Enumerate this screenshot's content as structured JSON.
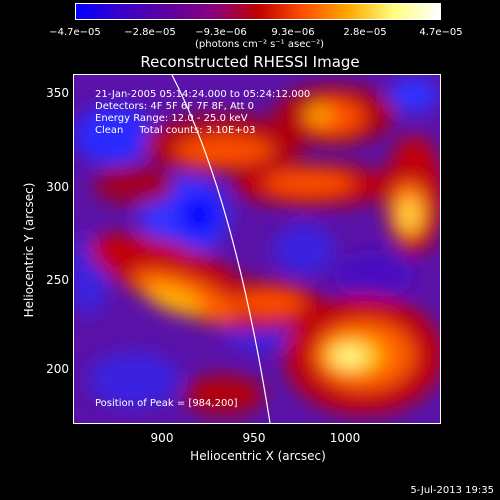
{
  "colorbar": {
    "ticks": [
      "−4.7e−05",
      "−2.8e−05",
      "−9.3e−06",
      "9.3e−06",
      "2.8e−05",
      "4.7e−05"
    ],
    "units": "(photons cm⁻² s⁻¹ asec⁻²)",
    "gradient": [
      "#0000ff",
      "#3b00c8",
      "#5d00a0",
      "#8a0080",
      "#c00000",
      "#ff5000",
      "#ffaa00",
      "#ffff80",
      "#ffffff"
    ]
  },
  "title": "Reconstructed RHESSI Image",
  "annotations": {
    "time": "21-Jan-2005 05:14:24.000 to 05:24:12.000",
    "detectors": "Detectors: 4F 5F 6F 7F 8F, Att 0",
    "energy": "Energy Range: 12.0 - 25.0 keV",
    "clean": "Clean     Total counts: 3.10E+03",
    "peak": "Position of Peak = [984,200]"
  },
  "axes": {
    "xlabel": "Heliocentric X (arcsec)",
    "ylabel": "Heliocentric Y (arcsec)",
    "xticks": [
      "900",
      "950",
      "1000"
    ],
    "yticks": [
      "350",
      "300",
      "250",
      "200"
    ]
  },
  "timestamp": "5-Jul-2013 19:35"
}
